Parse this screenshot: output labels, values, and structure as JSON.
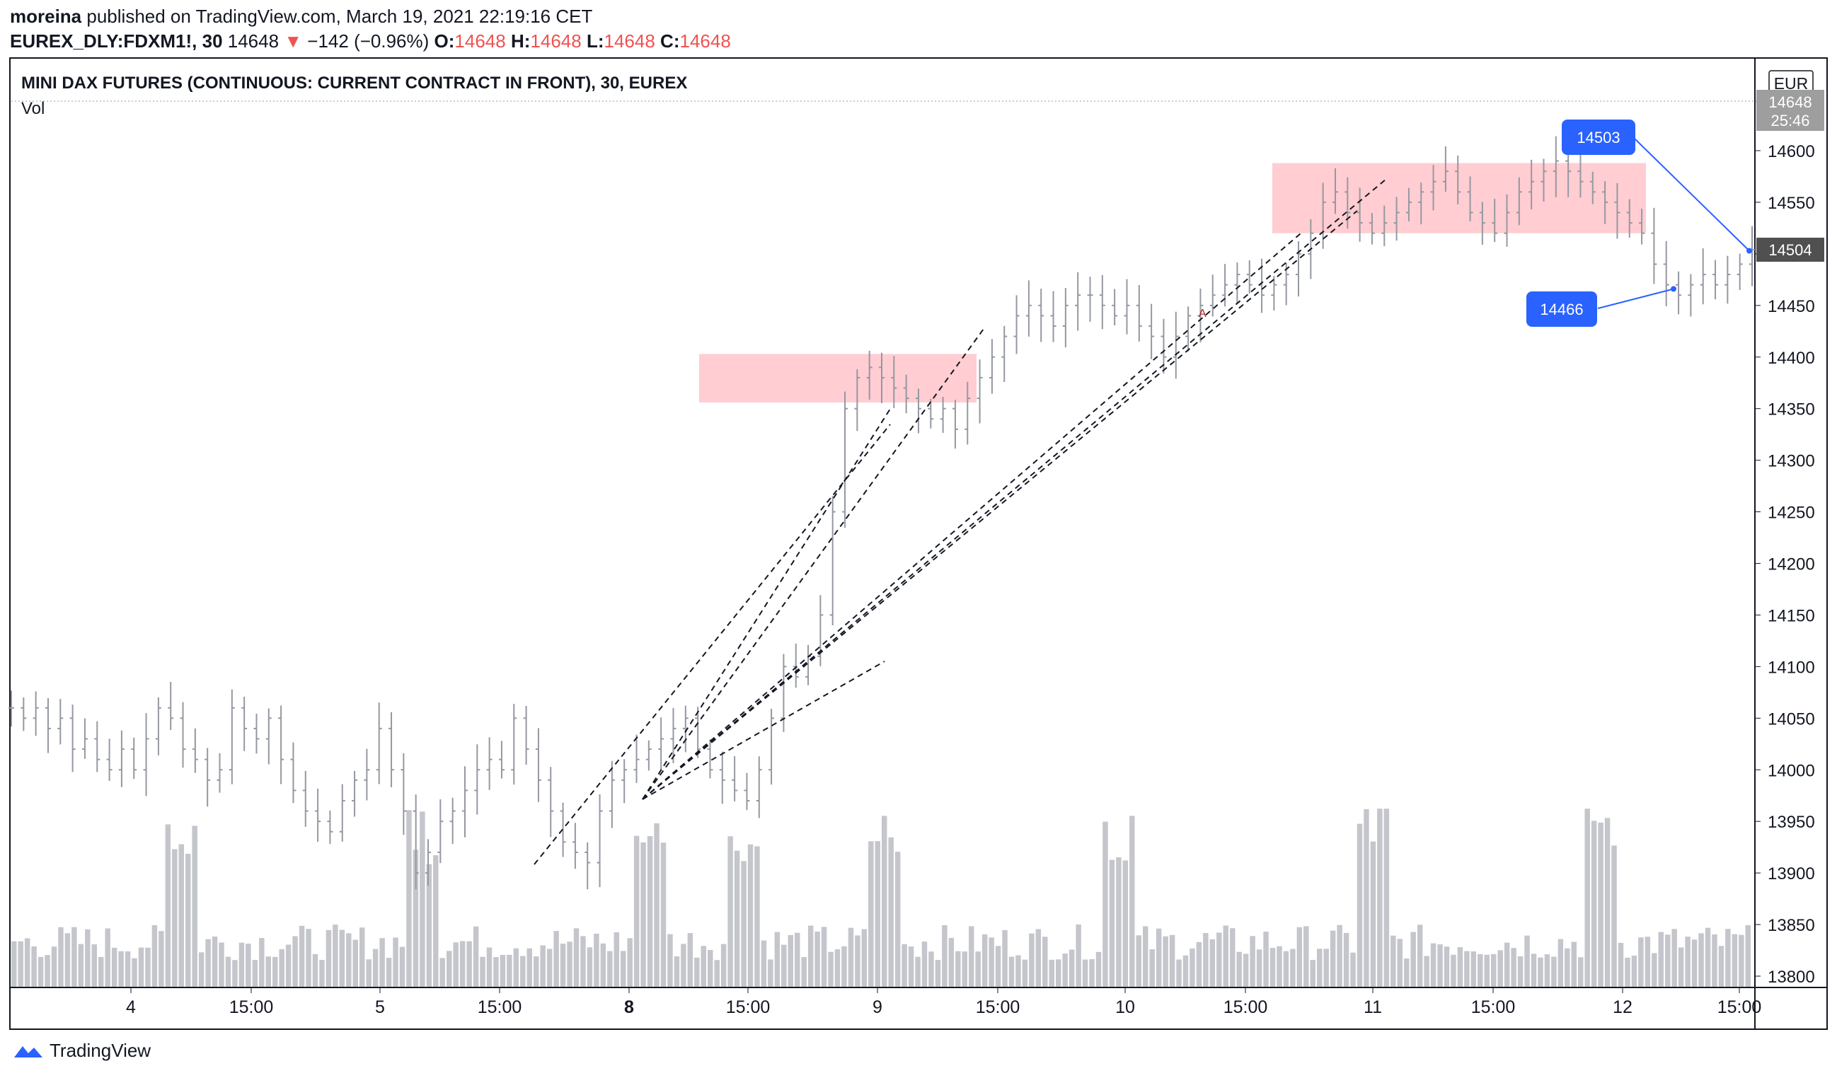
{
  "header": {
    "user": "moreina",
    "published_text": "published on TradingView.com, March 19, 2021 22:19:16 CET",
    "symbol": "EUREX_DLY:FDXM1!, 30",
    "last": "14648",
    "change_arrow": "▼",
    "change": "−142 (−0.96%)",
    "o_label": "O:",
    "o_value": "14648",
    "h_label": "H:",
    "h_value": "14648",
    "l_label": "L:",
    "l_value": "14648",
    "c_label": "C:",
    "c_value": "14648"
  },
  "chart_title": "MINI DAX FUTURES (CONTINUOUS: CURRENT CONTRACT IN FRONT), 30, EUREX",
  "vol_label": "Vol",
  "currency": "EUR",
  "footer_brand": "TradingView",
  "colors": {
    "bar": "#9598a1",
    "volume": "#c4c6cc",
    "zone": "#ffcdd2",
    "label_bg": "#2962ff",
    "grey_label": "#9e9e9e",
    "dark_label": "#505050"
  },
  "chart_data": {
    "type": "bar",
    "price_axis": {
      "ticks": [
        13800,
        13850,
        13900,
        13950,
        14000,
        14050,
        14100,
        14150,
        14200,
        14250,
        14300,
        14350,
        14400,
        14450,
        14500,
        14550,
        14600
      ],
      "ylim": [
        13780,
        14690
      ]
    },
    "time_axis": [
      "4",
      "15:00",
      "5",
      "15:00",
      "8",
      "15:00",
      "9",
      "15:00",
      "10",
      "15:00",
      "11",
      "15:00",
      "12",
      "15:00"
    ],
    "bold_time_labels": [
      "8",
      "15:00"
    ],
    "price_tags": {
      "last": "14648",
      "countdown": "25:46",
      "marked": "14504"
    },
    "callouts": [
      {
        "label": "14503",
        "value": 14503
      },
      {
        "label": "14466",
        "value": 14466
      }
    ],
    "resistance_zones": [
      {
        "from": 14356,
        "to": 14403,
        "start": "8 12:30",
        "end": "9 17:00"
      },
      {
        "from": 14520,
        "to": 14588,
        "start": "10 16:00",
        "end": "12 09:30"
      }
    ],
    "marker": "A",
    "ohlc_path": [
      14060,
      14050,
      14060,
      14040,
      14050,
      14020,
      14030,
      14010,
      14000,
      14020,
      14000,
      14030,
      14060,
      14050,
      14020,
      14010,
      13990,
      14000,
      14060,
      14040,
      14030,
      14050,
      14010,
      13980,
      13960,
      13950,
      13940,
      13970,
      13990,
      14000,
      14040,
      14000,
      13960,
      13900,
      13920,
      13950,
      13960,
      13980,
      14000,
      14010,
      14000,
      14050,
      14020,
      13990,
      13960,
      13930,
      13920,
      13910,
      13960,
      13990,
      14000,
      14010,
      14020,
      14030,
      14040,
      14050,
      14020,
      14000,
      13990,
      13980,
      13970,
      14000,
      14050,
      14100,
      14090,
      14110,
      14150,
      14250,
      14350,
      14380,
      14390,
      14380,
      14370,
      14360,
      14350,
      14340,
      14350,
      14330,
      14360,
      14380,
      14400,
      14420,
      14440,
      14450,
      14440,
      14430,
      14450,
      14460,
      14460,
      14450,
      14440,
      14450,
      14430,
      14420,
      14400,
      14420,
      14440,
      14450,
      14460,
      14470,
      14480,
      14470,
      14460,
      14470,
      14480,
      14500,
      14520,
      14550,
      14560,
      14540,
      14530,
      14520,
      14530,
      14540,
      14550,
      14560,
      14570,
      14580,
      14560,
      14540,
      14530,
      14520,
      14540,
      14560,
      14570,
      14580,
      14590,
      14580,
      14570,
      14560,
      14550,
      14540,
      14530,
      14520,
      14490,
      14470,
      14460,
      14470,
      14480,
      14470,
      14480,
      14490,
      14504
    ]
  }
}
